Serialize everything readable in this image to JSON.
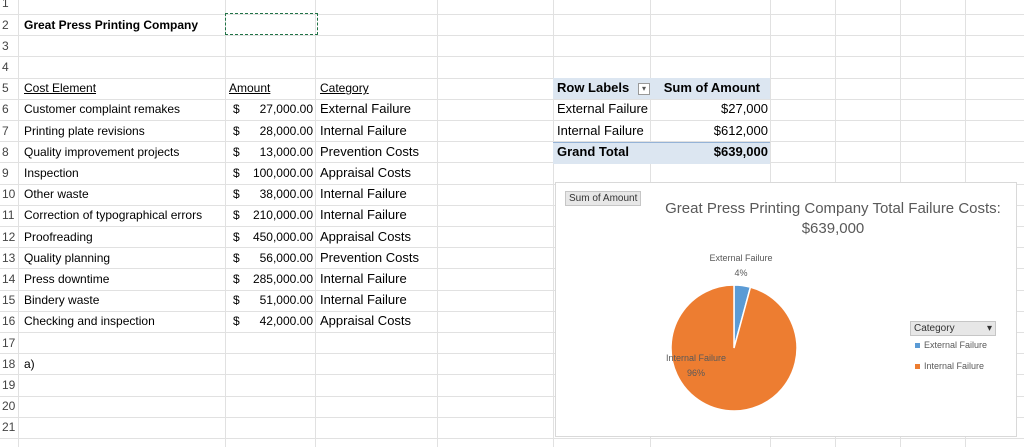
{
  "sheet": {
    "row_numbers": [
      1,
      2,
      3,
      4,
      5,
      6,
      7,
      8,
      9,
      10,
      11,
      12,
      13,
      14,
      15,
      16,
      17,
      18,
      19,
      20,
      21
    ],
    "company": "Great Press Printing Company",
    "table": {
      "header": [
        "Cost Element",
        "Amount",
        "Category"
      ],
      "rows": [
        [
          "Customer complaint remakes",
          "$",
          "27,000.00",
          "External Failure"
        ],
        [
          "Printing plate revisions",
          "$",
          "28,000.00",
          "Internal Failure"
        ],
        [
          "Quality improvement projects",
          "$",
          "13,000.00",
          "Prevention Costs"
        ],
        [
          "Inspection",
          "$",
          "100,000.00",
          "Appraisal Costs"
        ],
        [
          "Other waste",
          "$",
          "38,000.00",
          "Internal Failure"
        ],
        [
          "Correction of typographical errors",
          "$",
          "210,000.00",
          "Internal Failure"
        ],
        [
          "Proofreading",
          "$",
          "450,000.00",
          "Appraisal Costs"
        ],
        [
          "Quality planning",
          "$",
          "56,000.00",
          "Prevention Costs"
        ],
        [
          "Press downtime",
          "$",
          "285,000.00",
          "Internal Failure"
        ],
        [
          "Bindery waste",
          "$",
          "51,000.00",
          "Internal Failure"
        ],
        [
          "Checking and inspection",
          "$",
          "42,000.00",
          "Appraisal Costs"
        ]
      ]
    },
    "question": "a)"
  },
  "pivot": {
    "header": [
      "Row Labels",
      "Sum of Amount"
    ],
    "rows": [
      [
        "External Failure",
        "$27,000"
      ],
      [
        "Internal Failure",
        "$612,000"
      ]
    ],
    "total": [
      "Grand Total",
      "$639,000"
    ]
  },
  "chart_data": {
    "type": "pie",
    "field_button": "Sum of Amount",
    "title": "Great Press Printing Company Total Failure Costs: $639,000",
    "categories": [
      "External Failure",
      "Internal Failure"
    ],
    "values": [
      4.2,
      95.8
    ],
    "value_labels": [
      "4%",
      "96%"
    ],
    "colors": [
      "#5b9bd5",
      "#ed7d31"
    ],
    "legend_title": "Category",
    "legend": "right"
  }
}
